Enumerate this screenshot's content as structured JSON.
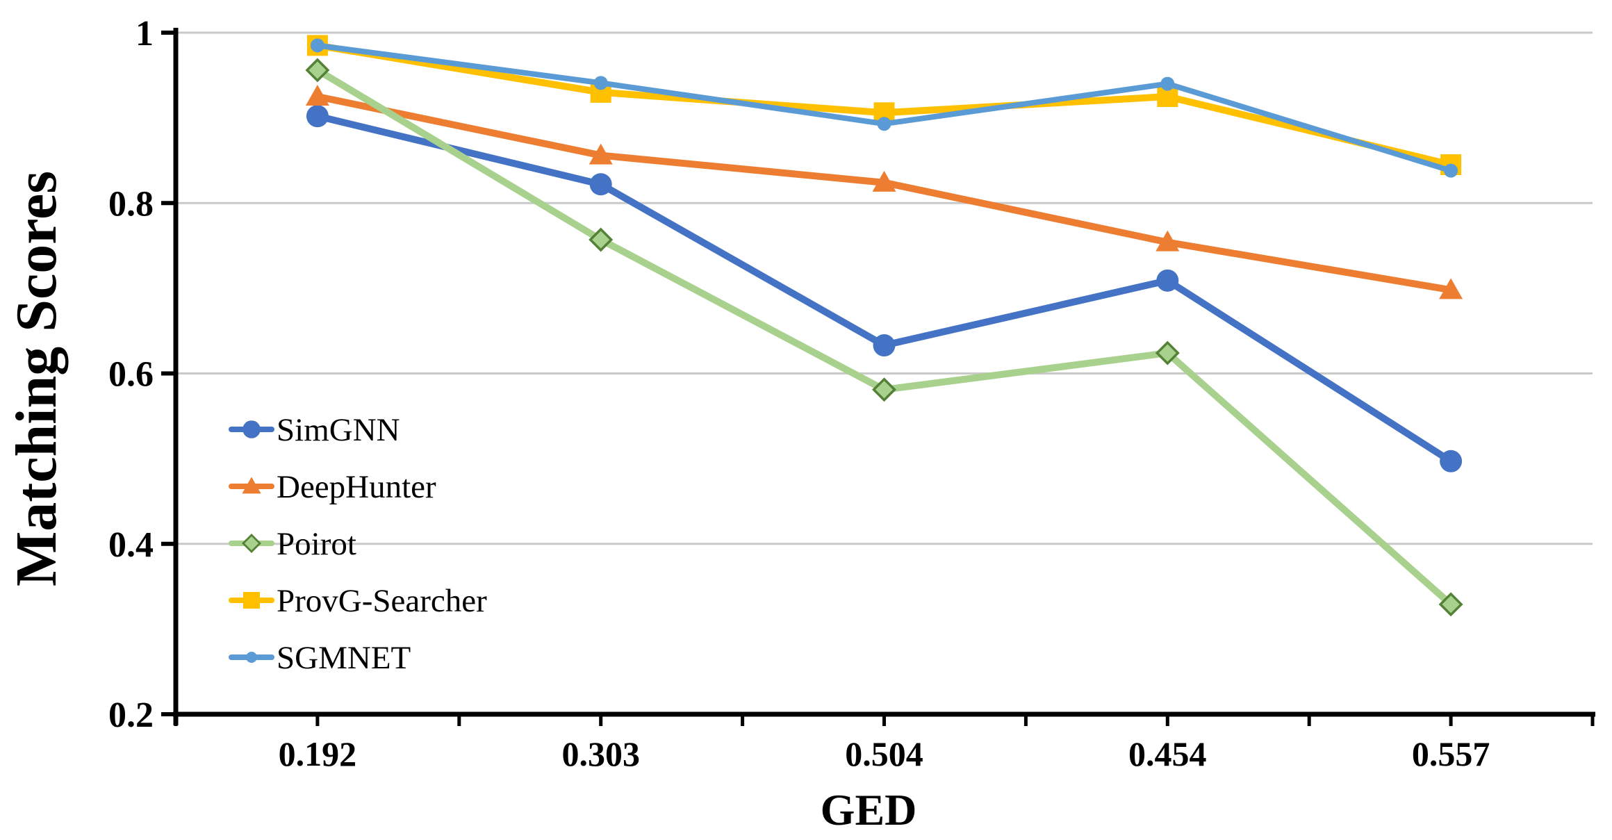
{
  "chart_data": {
    "type": "line",
    "title": "",
    "xlabel": "GED",
    "ylabel": "Matching Scores",
    "categories": [
      "0.192",
      "0.303",
      "0.504",
      "0.454",
      "0.557"
    ],
    "y_tick_labels": [
      "1",
      "0.8",
      "0.6",
      "0.4",
      "0.2"
    ],
    "y_tick_values": [
      1.0,
      0.8,
      0.6,
      0.4,
      0.2
    ],
    "ylim": [
      0.2,
      1.0
    ],
    "grid": true,
    "gridline_color": "#C9C9C9",
    "axis_color": "#000000",
    "legend_position": "inside-left-middle",
    "series": [
      {
        "name": "SimGNN",
        "color": "#4472C4",
        "marker": "circle",
        "line_width": 10,
        "values": [
          0.902,
          0.822,
          0.633,
          0.709,
          0.497
        ]
      },
      {
        "name": "DeepHunter",
        "color": "#ED7D31",
        "marker": "triangle",
        "line_width": 10,
        "values": [
          0.925,
          0.856,
          0.824,
          0.754,
          0.698
        ]
      },
      {
        "name": "Poirot",
        "color": "#A9D18E",
        "marker": "diamond",
        "marker_stroke": "#538135",
        "line_width": 10,
        "values": [
          0.956,
          0.757,
          0.581,
          0.624,
          0.329
        ]
      },
      {
        "name": "ProvG-Searcher",
        "color": "#FFC000",
        "marker": "square",
        "line_width": 10,
        "values": [
          0.985,
          0.93,
          0.906,
          0.925,
          0.845
        ]
      },
      {
        "name": "SGMNET",
        "color": "#5B9BD5",
        "marker": "dot",
        "line_width": 8,
        "values": [
          0.985,
          0.941,
          0.893,
          0.94,
          0.838
        ]
      }
    ]
  }
}
